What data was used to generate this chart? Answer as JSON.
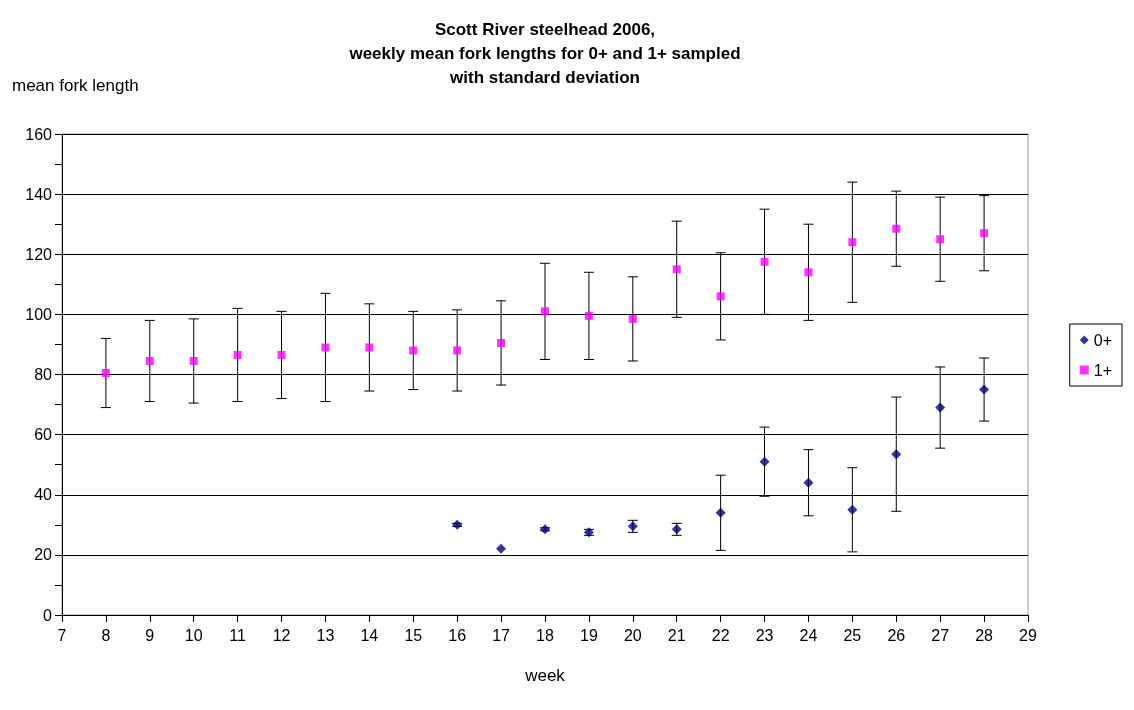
{
  "chart_data": {
    "type": "scatter",
    "title": "Scott River steelhead 2006,\nweekly mean fork lengths for 0+ and 1+ sampled\nwith standard deviation",
    "xlabel": "week",
    "ylabel": "mean fork length",
    "x": [
      8,
      9,
      10,
      11,
      12,
      13,
      14,
      15,
      16,
      17,
      18,
      19,
      20,
      21,
      22,
      23,
      24,
      25,
      26,
      27,
      28
    ],
    "series": [
      {
        "name": "0+",
        "color": "#000080",
        "marker": "diamond",
        "values": [
          null,
          null,
          null,
          null,
          null,
          null,
          null,
          null,
          30,
          22,
          28.5,
          27.5,
          29.5,
          28.5,
          34,
          51,
          44,
          35,
          53.5,
          69,
          75
        ],
        "errors": [
          null,
          null,
          null,
          null,
          null,
          null,
          null,
          null,
          0.5,
          null,
          0.5,
          1,
          2,
          2,
          12.5,
          11.5,
          11,
          14,
          19,
          13.5,
          10.5
        ]
      },
      {
        "name": "1+",
        "color": "#ff00ff",
        "marker": "square",
        "values": [
          80.5,
          84.5,
          84.5,
          86.5,
          86.5,
          89,
          89,
          88,
          88,
          90.5,
          101,
          99.5,
          98.5,
          115,
          106,
          117.5,
          114,
          124,
          128.5,
          125,
          127
        ],
        "errors": [
          11.5,
          13.5,
          14,
          15.5,
          14.5,
          18,
          14.5,
          13,
          13.5,
          14,
          16,
          14.5,
          14,
          16,
          14.5,
          17.5,
          16,
          20,
          12.5,
          14,
          12.5
        ]
      }
    ],
    "xlim": [
      7,
      29
    ],
    "xticks": [
      7,
      8,
      9,
      10,
      11,
      12,
      13,
      14,
      15,
      16,
      17,
      18,
      19,
      20,
      21,
      22,
      23,
      24,
      25,
      26,
      27,
      28,
      29
    ],
    "ylim": [
      0,
      160
    ],
    "yticks": [
      0,
      {
        "value": 10,
        "label": null
      },
      20,
      {
        "value": 30,
        "label": null
      },
      40,
      {
        "value": 50,
        "label": null
      },
      60,
      {
        "value": 70,
        "label": null
      },
      80,
      {
        "value": 90,
        "label": null
      },
      100,
      {
        "value": 110,
        "label": null
      },
      120,
      {
        "value": 130,
        "label": null
      },
      140,
      {
        "value": 150,
        "label": null
      },
      160
    ],
    "grid": "y",
    "legend": "right"
  }
}
